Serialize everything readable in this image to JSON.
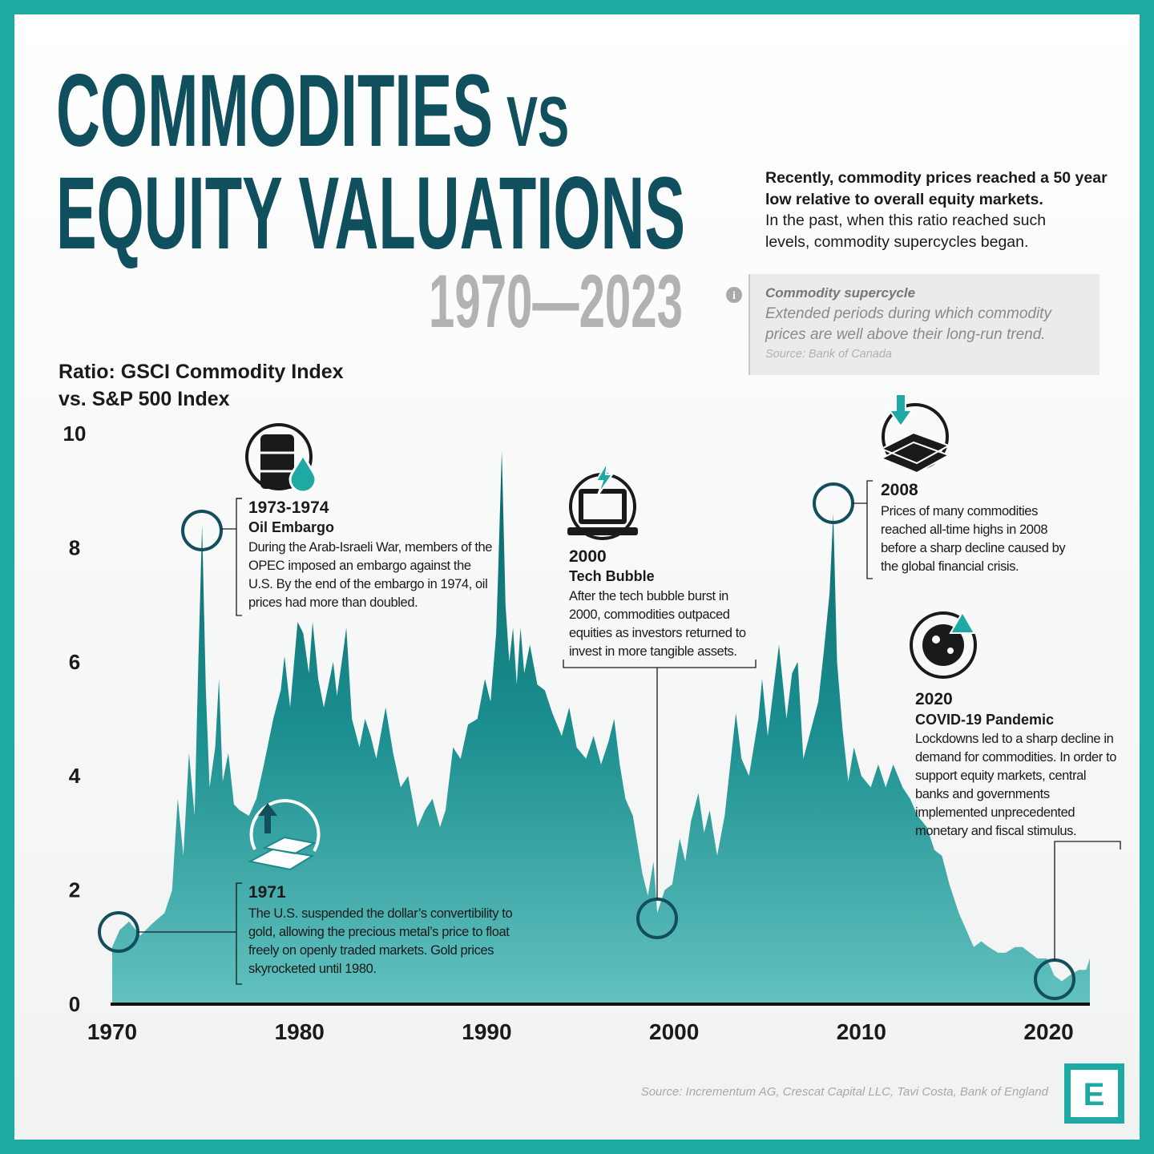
{
  "chart_data": {
    "type": "area",
    "title": [
      "COMMODITIES",
      "VS",
      "EQUITY VALUATIONS"
    ],
    "subtitle": "1970—2023",
    "intro_bold": "Recently, commodity prices reached a 50 year low relative to overall equity markets.",
    "intro": "In the past, when this ratio reached such levels, commodity supercycles began.",
    "definition": {
      "term": "Commodity supercycle",
      "text": "Extended periods during which commodity prices are well above their long-run trend.",
      "source": "Source: Bank of Canada"
    },
    "y_label": [
      "Ratio: GSCI Commodity Index",
      "vs. S&P 500 Index"
    ],
    "x": [
      1970.0,
      1970.4,
      1970.9,
      1971.5,
      1972.1,
      1972.8,
      1973.2,
      1973.5,
      1973.8,
      1974.1,
      1974.4,
      1974.6,
      1974.8,
      1975.0,
      1975.2,
      1975.5,
      1975.7,
      1975.9,
      1976.2,
      1976.5,
      1976.8,
      1977.3,
      1977.7,
      1978.1,
      1978.6,
      1979.0,
      1979.2,
      1979.5,
      1979.9,
      1980.2,
      1980.5,
      1980.7,
      1981.0,
      1981.3,
      1981.8,
      1982.0,
      1982.3,
      1982.5,
      1982.8,
      1983.2,
      1983.5,
      1983.8,
      1984.1,
      1984.6,
      1985.0,
      1985.4,
      1985.8,
      1986.3,
      1986.7,
      1987.1,
      1987.5,
      1987.8,
      1988.2,
      1988.6,
      1989.0,
      1989.5,
      1989.9,
      1990.2,
      1990.5,
      1990.6,
      1990.8,
      1991.0,
      1991.2,
      1991.4,
      1991.6,
      1991.8,
      1992.0,
      1992.3,
      1992.7,
      1993.1,
      1993.5,
      1994.0,
      1994.4,
      1994.8,
      1995.3,
      1995.7,
      1996.1,
      1996.5,
      1996.8,
      1997.1,
      1997.4,
      1997.8,
      1998.3,
      1998.6,
      1998.9,
      1999.1,
      1999.5,
      1999.9,
      2000.3,
      2000.6,
      2000.9,
      2001.3,
      2001.6,
      2001.9,
      2002.3,
      2002.7,
      2003.0,
      2003.3,
      2003.6,
      2004.0,
      2004.5,
      2004.7,
      2005.0,
      2005.3,
      2005.6,
      2006.0,
      2006.3,
      2006.6,
      2006.9,
      2007.3,
      2007.7,
      2008.0,
      2008.3,
      2008.5,
      2008.7,
      2009.0,
      2009.3,
      2009.6,
      2010.0,
      2010.5,
      2010.9,
      2011.3,
      2011.7,
      2012.2,
      2012.6,
      2013.0,
      2013.5,
      2013.9,
      2014.3,
      2014.7,
      2015.2,
      2015.6,
      2016.0,
      2016.4,
      2016.8,
      2017.3,
      2017.7,
      2018.2,
      2018.6,
      2019.0,
      2019.4,
      2019.9,
      2020.3,
      2020.7,
      2021.1,
      2021.6,
      2022.0,
      2022.2
    ],
    "values": [
      1.0,
      1.3,
      1.45,
      1.2,
      1.4,
      1.6,
      2.0,
      3.6,
      2.6,
      4.4,
      3.3,
      6.0,
      8.4,
      5.5,
      3.8,
      4.5,
      5.7,
      3.9,
      4.4,
      3.5,
      3.4,
      3.3,
      3.6,
      4.2,
      5.0,
      5.5,
      6.1,
      5.2,
      6.7,
      6.5,
      5.8,
      6.7,
      5.7,
      5.2,
      6.0,
      5.4,
      6.1,
      6.6,
      5.0,
      4.5,
      5.0,
      4.7,
      4.3,
      5.2,
      4.4,
      3.8,
      4.0,
      3.1,
      3.4,
      3.6,
      3.1,
      3.4,
      4.5,
      4.3,
      4.9,
      5.0,
      5.7,
      5.3,
      6.5,
      7.5,
      9.7,
      7.0,
      6.0,
      6.6,
      5.6,
      6.6,
      5.8,
      6.3,
      5.6,
      5.5,
      5.1,
      4.7,
      5.2,
      4.5,
      4.3,
      4.7,
      4.2,
      4.6,
      5.0,
      4.2,
      3.6,
      3.3,
      2.3,
      1.9,
      2.5,
      1.6,
      2.0,
      2.1,
      2.9,
      2.5,
      3.2,
      3.7,
      3.0,
      3.4,
      2.6,
      3.3,
      4.2,
      5.1,
      4.3,
      4.0,
      5.0,
      5.7,
      4.7,
      5.5,
      6.3,
      5.0,
      5.8,
      6.0,
      4.3,
      4.8,
      5.3,
      6.2,
      7.2,
      8.6,
      6.0,
      4.8,
      3.9,
      4.5,
      4.0,
      3.8,
      4.2,
      3.8,
      4.2,
      3.8,
      3.6,
      3.3,
      3.1,
      2.7,
      2.6,
      2.1,
      1.6,
      1.3,
      1.0,
      1.1,
      1.0,
      0.9,
      0.9,
      1.0,
      1.0,
      0.9,
      0.8,
      0.8,
      0.5,
      0.4,
      0.5,
      0.6,
      0.6,
      0.8
    ],
    "color": "#137b7e",
    "xlim": [
      1970,
      2022.2
    ],
    "ylim": [
      0,
      10
    ],
    "xticks": [
      1970,
      1980,
      1990,
      2000,
      2010,
      2020
    ],
    "yticks": [
      0,
      2,
      4,
      6,
      8,
      10
    ],
    "grid": false,
    "annotations": [
      {
        "label": "1973-1974",
        "title": "Oil Embargo",
        "text": "During the Arab-Israeli War, members of the OPEC imposed an embargo against the U.S. By the end of the embargo in 1974, oil prices had more than doubled."
      },
      {
        "label": "1971",
        "text": "The U.S. suspended the dollar’s convertibility to gold, allowing the precious metal’s price to float freely on openly traded markets. Gold prices skyrocketed until 1980."
      },
      {
        "label": "2000",
        "title": "Tech Bubble",
        "text": "After the tech bubble burst in 2000, commodities outpaced equities as investors returned to invest in more tangible assets."
      },
      {
        "label": "2008",
        "text": "Prices of many commodities reached all-time highs in 2008 before a sharp decline caused by the global financial crisis."
      },
      {
        "label": "2020",
        "title": "COVID-19 Pandemic",
        "text": "Lockdowns led to a sharp decline in demand for commodities. In order to support equity markets, central banks and governments implemented unprecedented monetary and fiscal stimulus."
      }
    ],
    "source": "Source: Incrementum AG, Crescat Capital LLC, Tavi Costa, Bank of England",
    "logo": "E"
  }
}
